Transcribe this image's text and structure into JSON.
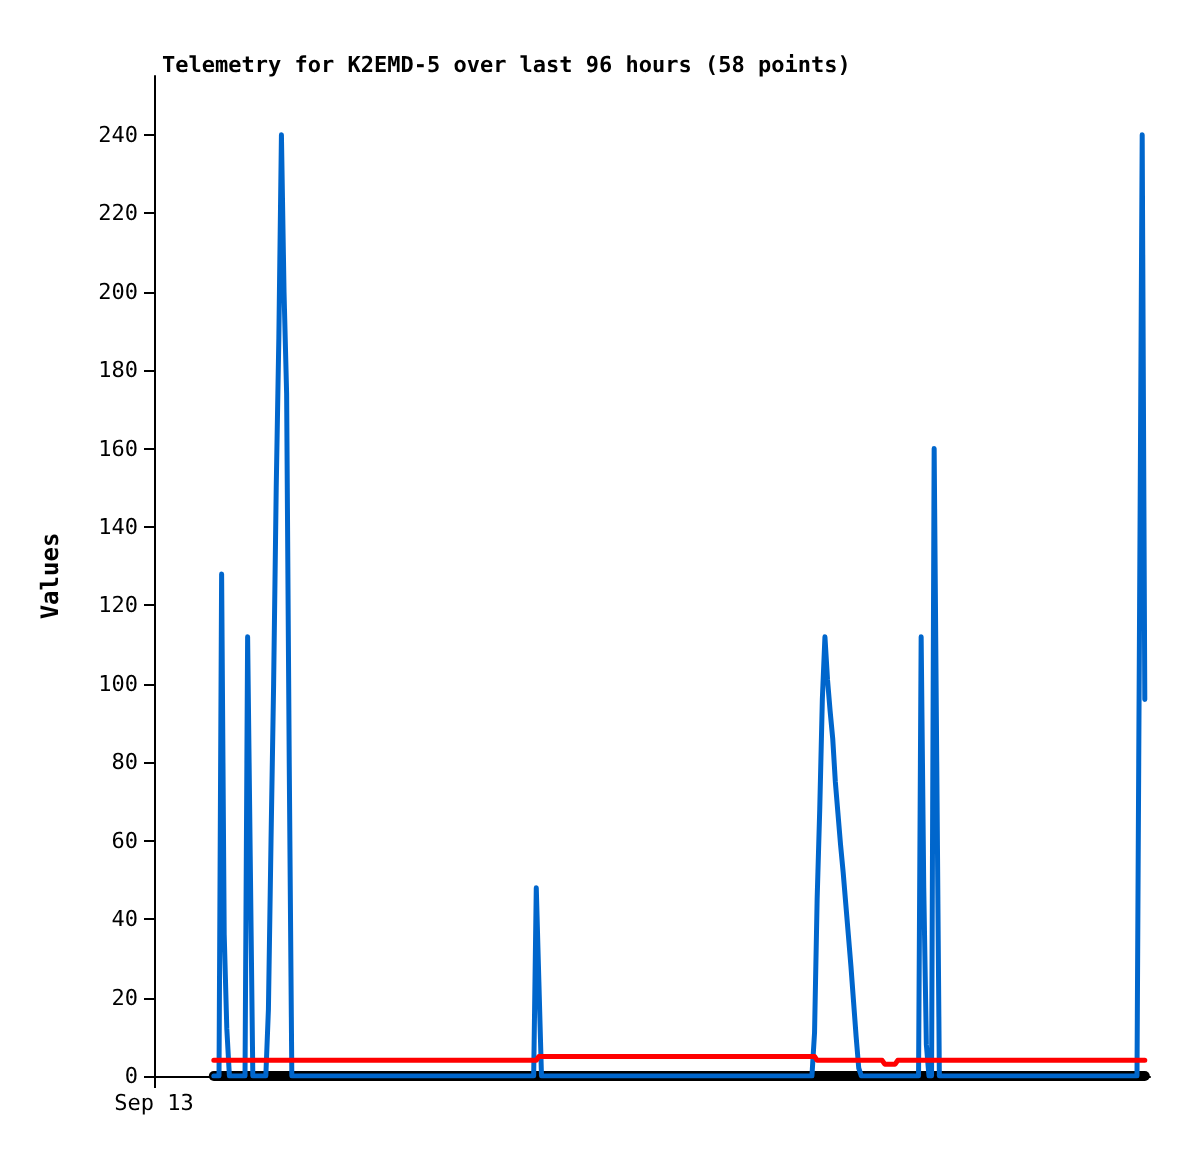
{
  "chart_data": {
    "type": "line",
    "title": "Telemetry for K2EMD-5 over last 96 hours (58 points)",
    "ylabel": "Values",
    "categories": [
      "Sep 13",
      null,
      null,
      null,
      null,
      null,
      null,
      null,
      null,
      null,
      null,
      null,
      null,
      null,
      null,
      null,
      null,
      null,
      null,
      null,
      null,
      null,
      null,
      null,
      null,
      null,
      null,
      null,
      null,
      null,
      null,
      null,
      null,
      null,
      null,
      null,
      null,
      null,
      null,
      null,
      null,
      null,
      null,
      null,
      null,
      null,
      null,
      null,
      null,
      null,
      null,
      null,
      null,
      null,
      null,
      null,
      null,
      null,
      null,
      null,
      null,
      null,
      null,
      null,
      null,
      null,
      null,
      null,
      null,
      null,
      null,
      null,
      null,
      null,
      null,
      null,
      null,
      null,
      null,
      null,
      null,
      null,
      null,
      null,
      null,
      null,
      null,
      null,
      null,
      null,
      null,
      null,
      null,
      null,
      null,
      null,
      null,
      null,
      null,
      null,
      null,
      null,
      null,
      null,
      null,
      null,
      null,
      null,
      null,
      null,
      null,
      null,
      null,
      null,
      null,
      null,
      null,
      null,
      null,
      null,
      null,
      null,
      null,
      null,
      null,
      null,
      null,
      null,
      null,
      null,
      null,
      null,
      null,
      null,
      null,
      null,
      null,
      null,
      null,
      null,
      null,
      null,
      null,
      null,
      null,
      null,
      null,
      null,
      null,
      null,
      null,
      null,
      null,
      null,
      null,
      null,
      null,
      null,
      null,
      null,
      null,
      null,
      null,
      null,
      null,
      null,
      null,
      null,
      null,
      null,
      null,
      null,
      null,
      null,
      null,
      null,
      null,
      null,
      null,
      null,
      null,
      null,
      null,
      null,
      null,
      null,
      null,
      null,
      null,
      null,
      null,
      null,
      null,
      null,
      null,
      null,
      null,
      null,
      null,
      null,
      null,
      null,
      null,
      null,
      null,
      null,
      null,
      null,
      null,
      null,
      null,
      null,
      null,
      null,
      null,
      null,
      null,
      null,
      null,
      null,
      null,
      null,
      null,
      null,
      null,
      null,
      null,
      null,
      null,
      null,
      null,
      null,
      null,
      null,
      null,
      null,
      null,
      null,
      null,
      null,
      null,
      null,
      null,
      null,
      null,
      null,
      null,
      null,
      null,
      null,
      null,
      null,
      null,
      null,
      null,
      null,
      null,
      null,
      null,
      null,
      null,
      null,
      null,
      null,
      null,
      null,
      null,
      null,
      null,
      null,
      null,
      null,
      null,
      null,
      null,
      null,
      null,
      null,
      null,
      null,
      null,
      null,
      null,
      null,
      null,
      null,
      null,
      null,
      null,
      null,
      null,
      null,
      null,
      null,
      null,
      null,
      null,
      null,
      null,
      null,
      null,
      null,
      null,
      null,
      null,
      null,
      null,
      null,
      null,
      null,
      null,
      null,
      null,
      null,
      null,
      null,
      null,
      null,
      null,
      null,
      null,
      null,
      null,
      null,
      null,
      null,
      null,
      null,
      null,
      null,
      null,
      null,
      null,
      null,
      null,
      null,
      null,
      null,
      null,
      null,
      null,
      null,
      null,
      null,
      null,
      null,
      null,
      null,
      null,
      null,
      null,
      null,
      null,
      null,
      null,
      null,
      null,
      null,
      null,
      null,
      null,
      null,
      null,
      null,
      null,
      null,
      null,
      null,
      null,
      null,
      null,
      null,
      null,
      null,
      null,
      null,
      null,
      null,
      null,
      null,
      null,
      null,
      null,
      null
    ],
    "ylim": [
      0,
      255
    ],
    "yticks": [
      0,
      20,
      40,
      60,
      80,
      100,
      120,
      140,
      160,
      180,
      200,
      220,
      240
    ],
    "marker": "none",
    "line_style": "solid",
    "series": [
      {
        "color": "#000000",
        "values": [
          null,
          null,
          null,
          null,
          null,
          null,
          null,
          null,
          null,
          null,
          null,
          null,
          null,
          null,
          null,
          null,
          null,
          null,
          null,
          null,
          null,
          null,
          null,
          0,
          0,
          0,
          0,
          0,
          0,
          0,
          0,
          0,
          0,
          0,
          0,
          0,
          0,
          0,
          0,
          0,
          0,
          0,
          0,
          0,
          0,
          0,
          0,
          0,
          0,
          0,
          0,
          0,
          0,
          0,
          0,
          0,
          0,
          0,
          0,
          0,
          0,
          0,
          0,
          0,
          0,
          0,
          0,
          0,
          0,
          0,
          0,
          0,
          0,
          0,
          0,
          0,
          0,
          0,
          0,
          0,
          0,
          0,
          0,
          0,
          0,
          0,
          0,
          0,
          0,
          0,
          0,
          0,
          0,
          0,
          0,
          0,
          0,
          0,
          0,
          0,
          0,
          0,
          0,
          0,
          0,
          0,
          0,
          0,
          0,
          0,
          0,
          0,
          0,
          0,
          0,
          0,
          0,
          0,
          0,
          0,
          0,
          0,
          0,
          0,
          0,
          0,
          0,
          0,
          0,
          0,
          0,
          0,
          0,
          0,
          0,
          0,
          0,
          0,
          0,
          0,
          0,
          0,
          0,
          0,
          0,
          0,
          0,
          0,
          0,
          0,
          0,
          0,
          0,
          0,
          0,
          0,
          0,
          0,
          0,
          0,
          0,
          0,
          0,
          0,
          0,
          0,
          0,
          0,
          0,
          0,
          0,
          0,
          0,
          0,
          0,
          0,
          0,
          0,
          0,
          0,
          0,
          0,
          0,
          0,
          0,
          0,
          0,
          0,
          0,
          0,
          0,
          0,
          0,
          0,
          0,
          0,
          0,
          0,
          0,
          0,
          0,
          0,
          0,
          0,
          0,
          0,
          0,
          0,
          0,
          0,
          0,
          0,
          0,
          0,
          0,
          0,
          0,
          0,
          0,
          0,
          0,
          0,
          0,
          0,
          0,
          0,
          0,
          0,
          0,
          0,
          0,
          0,
          0,
          0,
          0,
          0,
          0,
          0,
          0,
          0,
          0,
          0,
          0,
          0,
          0,
          0,
          0,
          0,
          0,
          0,
          0,
          0,
          0,
          0,
          0,
          0,
          0,
          0,
          0,
          0,
          0,
          0,
          0,
          0,
          0,
          0,
          0,
          0,
          0,
          0,
          0,
          0,
          0,
          0,
          0,
          0,
          0,
          0,
          0,
          0,
          0,
          0,
          0,
          0,
          0,
          0,
          0,
          0,
          0,
          0,
          0,
          0,
          0,
          0,
          0,
          0,
          0,
          0,
          0,
          0,
          0,
          0,
          0,
          0,
          0,
          0,
          0,
          0,
          0,
          0,
          0,
          0,
          0,
          0,
          0,
          0,
          0,
          0,
          0,
          0,
          0,
          0,
          0,
          0,
          0,
          0,
          0,
          0,
          0,
          0,
          0,
          0,
          0,
          0,
          0,
          0,
          0,
          0,
          0,
          0,
          0,
          0,
          0,
          0,
          0,
          0,
          0,
          0,
          0,
          0,
          0,
          0,
          0,
          0,
          0,
          0,
          0,
          0,
          0,
          0,
          0,
          0,
          0,
          0,
          0,
          0,
          0,
          0,
          0,
          0,
          0,
          0,
          0,
          0,
          0,
          0,
          0,
          0,
          0,
          0,
          0,
          0,
          null,
          null
        ]
      },
      {
        "color": "#ff0000",
        "values": [
          null,
          null,
          null,
          null,
          null,
          null,
          null,
          null,
          null,
          null,
          null,
          null,
          null,
          null,
          null,
          null,
          null,
          null,
          null,
          null,
          null,
          null,
          null,
          4,
          4,
          4,
          4,
          4,
          4,
          4,
          4,
          4,
          4,
          4,
          4,
          4,
          4,
          4,
          4,
          4,
          4,
          4,
          4,
          4,
          4,
          4,
          4,
          4,
          4,
          4,
          4,
          4,
          4,
          4,
          4,
          4,
          4,
          4,
          4,
          4,
          4,
          4,
          4,
          4,
          4,
          4,
          4,
          4,
          4,
          4,
          4,
          4,
          4,
          4,
          4,
          4,
          4,
          4,
          4,
          4,
          4,
          4,
          4,
          4,
          4,
          4,
          4,
          4,
          4,
          4,
          4,
          4,
          4,
          4,
          4,
          4,
          4,
          4,
          4,
          4,
          4,
          4,
          4,
          4,
          4,
          4,
          4,
          4,
          4,
          4,
          4,
          4,
          4,
          4,
          4,
          4,
          4,
          4,
          4,
          4,
          4,
          4,
          4,
          4,
          4,
          4,
          4,
          4,
          4,
          4,
          4,
          4,
          4,
          4,
          4,
          4,
          4,
          4,
          4,
          4,
          4,
          4,
          4,
          4,
          4,
          4,
          4,
          4,
          5,
          5,
          5,
          5,
          5,
          5,
          5,
          5,
          5,
          5,
          5,
          5,
          5,
          5,
          5,
          5,
          5,
          5,
          5,
          5,
          5,
          5,
          5,
          5,
          5,
          5,
          5,
          5,
          5,
          5,
          5,
          5,
          5,
          5,
          5,
          5,
          5,
          5,
          5,
          5,
          5,
          5,
          5,
          5,
          5,
          5,
          5,
          5,
          5,
          5,
          5,
          5,
          5,
          5,
          5,
          5,
          5,
          5,
          5,
          5,
          5,
          5,
          5,
          5,
          5,
          5,
          5,
          5,
          5,
          5,
          5,
          5,
          5,
          5,
          5,
          5,
          5,
          5,
          5,
          5,
          5,
          5,
          5,
          5,
          5,
          5,
          5,
          5,
          5,
          5,
          5,
          5,
          5,
          5,
          5,
          5,
          5,
          5,
          5,
          5,
          5,
          5,
          5,
          5,
          5,
          5,
          5,
          4,
          4,
          4,
          4,
          4,
          4,
          4,
          4,
          4,
          4,
          4,
          4,
          4,
          4,
          4,
          4,
          4,
          4,
          4,
          4,
          4,
          4,
          4,
          4,
          4,
          4,
          3,
          3,
          3,
          3,
          3,
          4,
          4,
          4,
          4,
          4,
          4,
          4,
          4,
          4,
          4,
          4,
          4,
          4,
          4,
          4,
          4,
          4,
          4,
          4,
          4,
          4,
          4,
          4,
          4,
          4,
          4,
          4,
          4,
          4,
          4,
          4,
          4,
          4,
          4,
          4,
          4,
          4,
          4,
          4,
          4,
          4,
          4,
          4,
          4,
          4,
          4,
          4,
          4,
          4,
          4,
          4,
          4,
          4,
          4,
          4,
          4,
          4,
          4,
          4,
          4,
          4,
          4,
          4,
          4,
          4,
          4,
          4,
          4,
          4,
          4,
          4,
          4,
          4,
          4,
          4,
          4,
          4,
          4,
          4,
          4,
          4,
          4,
          4,
          4,
          4,
          4,
          4,
          4,
          4,
          4,
          4,
          4,
          4,
          4,
          4,
          4,
          null,
          null
        ]
      },
      {
        "color": "#0066cc",
        "values": [
          null,
          null,
          null,
          null,
          null,
          null,
          null,
          null,
          null,
          null,
          null,
          null,
          null,
          null,
          null,
          null,
          null,
          null,
          null,
          null,
          null,
          null,
          null,
          0,
          0,
          0,
          128,
          36,
          12,
          0,
          0,
          0,
          0,
          0,
          0,
          0,
          112,
          56,
          0,
          0,
          0,
          0,
          0,
          0,
          17,
          60,
          100,
          150,
          188,
          240,
          200,
          174,
          80,
          0,
          0,
          0,
          0,
          0,
          0,
          0,
          0,
          0,
          0,
          0,
          0,
          0,
          0,
          0,
          0,
          0,
          0,
          0,
          0,
          0,
          0,
          0,
          0,
          0,
          0,
          0,
          0,
          0,
          0,
          0,
          0,
          0,
          0,
          0,
          0,
          0,
          0,
          0,
          0,
          0,
          0,
          0,
          0,
          0,
          0,
          0,
          0,
          0,
          0,
          0,
          0,
          0,
          0,
          0,
          0,
          0,
          0,
          0,
          0,
          0,
          0,
          0,
          0,
          0,
          0,
          0,
          0,
          0,
          0,
          0,
          0,
          0,
          0,
          0,
          0,
          0,
          0,
          0,
          0,
          0,
          0,
          0,
          0,
          0,
          0,
          0,
          0,
          0,
          0,
          0,
          0,
          0,
          0,
          48,
          24,
          0,
          0,
          0,
          0,
          0,
          0,
          0,
          0,
          0,
          0,
          0,
          0,
          0,
          0,
          0,
          0,
          0,
          0,
          0,
          0,
          0,
          0,
          0,
          0,
          0,
          0,
          0,
          0,
          0,
          0,
          0,
          0,
          0,
          0,
          0,
          0,
          0,
          0,
          0,
          0,
          0,
          0,
          0,
          0,
          0,
          0,
          0,
          0,
          0,
          0,
          0,
          0,
          0,
          0,
          0,
          0,
          0,
          0,
          0,
          0,
          0,
          0,
          0,
          0,
          0,
          0,
          0,
          0,
          0,
          0,
          0,
          0,
          0,
          0,
          0,
          0,
          0,
          0,
          0,
          0,
          0,
          0,
          0,
          0,
          0,
          0,
          0,
          0,
          0,
          0,
          0,
          0,
          0,
          0,
          0,
          0,
          0,
          0,
          0,
          0,
          0,
          0,
          0,
          0,
          0,
          11,
          45,
          68,
          96,
          112,
          101,
          93,
          86,
          75,
          67,
          59,
          52,
          44,
          36,
          28,
          19,
          10,
          2,
          0,
          0,
          0,
          0,
          0,
          0,
          0,
          0,
          0,
          0,
          0,
          0,
          0,
          0,
          0,
          0,
          0,
          0,
          0,
          0,
          0,
          0,
          0,
          112,
          48,
          8,
          0,
          0,
          160,
          80,
          0,
          0,
          0,
          0,
          0,
          0,
          0,
          0,
          0,
          0,
          0,
          0,
          0,
          0,
          0,
          0,
          0,
          0,
          0,
          0,
          0,
          0,
          0,
          0,
          0,
          0,
          0,
          0,
          0,
          0,
          0,
          0,
          0,
          0,
          0,
          0,
          0,
          0,
          0,
          0,
          0,
          0,
          0,
          0,
          0,
          0,
          0,
          0,
          0,
          0,
          0,
          0,
          0,
          0,
          0,
          0,
          0,
          0,
          0,
          0,
          0,
          0,
          0,
          0,
          0,
          0,
          0,
          0,
          0,
          0,
          0,
          0,
          0,
          0,
          0,
          0,
          0,
          120,
          240,
          96,
          null,
          null
        ]
      }
    ]
  }
}
